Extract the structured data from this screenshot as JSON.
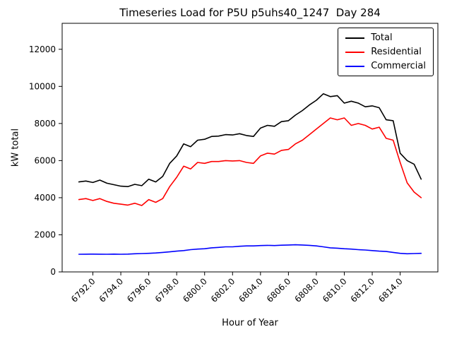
{
  "chart_data": {
    "type": "line",
    "title": "Timeseries Load for P5U p5uhs40_1247  Day 284",
    "xlabel": "Hour of Year",
    "ylabel": "kW total",
    "xlim": [
      6789.8,
      6816.7
    ],
    "ylim": [
      0,
      13400
    ],
    "grid": false,
    "legend_position": "upper right",
    "xticks": {
      "values": [
        6792,
        6794,
        6796,
        6798,
        6800,
        6802,
        6804,
        6806,
        6808,
        6810,
        6812,
        6814
      ],
      "labels": [
        "6792.0",
        "6794.0",
        "6796.0",
        "6798.0",
        "6800.0",
        "6802.0",
        "6804.0",
        "6806.0",
        "6808.0",
        "6810.0",
        "6812.0",
        "6814.0"
      ]
    },
    "yticks": {
      "values": [
        0,
        2000,
        4000,
        6000,
        8000,
        10000,
        12000
      ],
      "labels": [
        "0",
        "2000",
        "4000",
        "6000",
        "8000",
        "10000",
        "12000"
      ]
    },
    "x": [
      6791.0,
      6791.5,
      6792.0,
      6792.5,
      6793.0,
      6793.5,
      6794.0,
      6794.5,
      6795.0,
      6795.5,
      6796.0,
      6796.5,
      6797.0,
      6797.5,
      6798.0,
      6798.5,
      6799.0,
      6799.5,
      6800.0,
      6800.5,
      6801.0,
      6801.5,
      6802.0,
      6802.5,
      6803.0,
      6803.5,
      6804.0,
      6804.5,
      6805.0,
      6805.5,
      6806.0,
      6806.5,
      6807.0,
      6807.5,
      6808.0,
      6808.5,
      6809.0,
      6809.5,
      6810.0,
      6810.5,
      6811.0,
      6811.5,
      6812.0,
      6812.5,
      6813.0,
      6813.5,
      6814.0,
      6814.5,
      6815.0,
      6815.5
    ],
    "series": [
      {
        "name": "Total",
        "color": "#000000",
        "values": [
          4850,
          4900,
          4820,
          4950,
          4780,
          4700,
          4620,
          4600,
          4720,
          4650,
          5000,
          4850,
          5150,
          5850,
          6250,
          6900,
          6750,
          7100,
          7150,
          7300,
          7320,
          7400,
          7380,
          7450,
          7350,
          7300,
          7750,
          7900,
          7850,
          8100,
          8150,
          8450,
          8700,
          9000,
          9250,
          9600,
          9450,
          9500,
          9100,
          9200,
          9100,
          8900,
          8950,
          8850,
          8200,
          8150,
          6400,
          6000,
          5800,
          5000
        ]
      },
      {
        "name": "Residential",
        "color": "#ff0000",
        "values": [
          3900,
          3950,
          3850,
          3950,
          3800,
          3700,
          3650,
          3600,
          3700,
          3580,
          3900,
          3750,
          3950,
          4600,
          5100,
          5700,
          5550,
          5900,
          5850,
          5950,
          5950,
          6000,
          5980,
          6000,
          5900,
          5850,
          6250,
          6400,
          6350,
          6550,
          6600,
          6900,
          7100,
          7400,
          7700,
          8000,
          8300,
          8200,
          8300,
          7900,
          8000,
          7900,
          7700,
          7800,
          7200,
          7100,
          5900,
          4800,
          4300,
          4000
        ]
      },
      {
        "name": "Commercial",
        "color": "#0000ff",
        "values": [
          950,
          955,
          960,
          955,
          950,
          960,
          950,
          960,
          980,
          990,
          1000,
          1020,
          1050,
          1080,
          1120,
          1150,
          1200,
          1230,
          1250,
          1300,
          1320,
          1350,
          1350,
          1380,
          1400,
          1400,
          1420,
          1430,
          1420,
          1440,
          1450,
          1460,
          1450,
          1430,
          1400,
          1350,
          1300,
          1280,
          1250,
          1230,
          1200,
          1180,
          1150,
          1120,
          1100,
          1050,
          1000,
          980,
          990,
          1000
        ]
      }
    ]
  }
}
